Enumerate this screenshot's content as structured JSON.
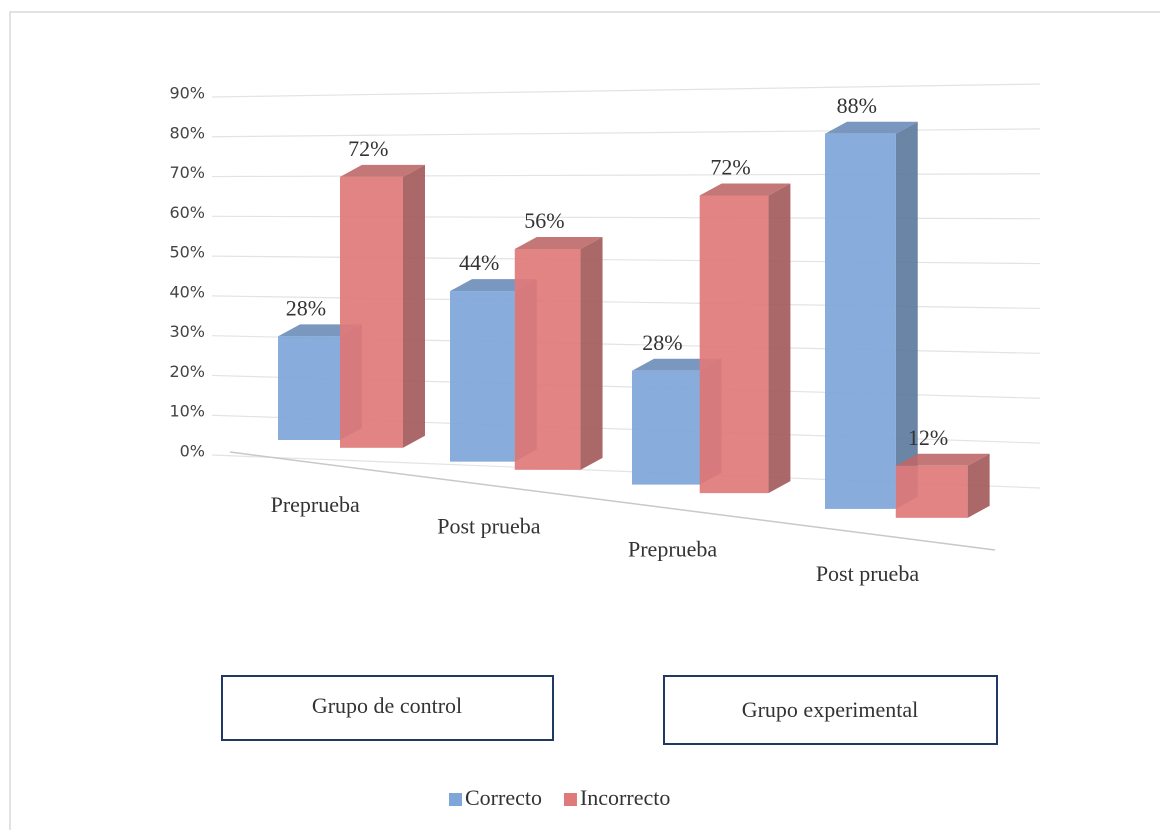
{
  "chart_data": {
    "type": "bar3d",
    "categories": [
      "Preprueba",
      "Post prueba",
      "Preprueba",
      "Post prueba"
    ],
    "series": [
      {
        "name": "Correcto",
        "color": "#7ea6d9",
        "values": [
          28,
          44,
          28,
          88
        ],
        "value_labels": [
          "28%",
          "44%",
          "28%",
          "88%"
        ]
      },
      {
        "name": "Incorrecto",
        "color": "#e07a7a",
        "values": [
          72,
          56,
          72,
          12
        ],
        "value_labels": [
          "72%",
          "56%",
          "72%",
          "12%"
        ]
      }
    ],
    "ylim": [
      0,
      90
    ],
    "yticks": [
      {
        "value": 0,
        "label": "0%"
      },
      {
        "value": 10,
        "label": "10%"
      },
      {
        "value": 20,
        "label": "20%"
      },
      {
        "value": 30,
        "label": "30%"
      },
      {
        "value": 40,
        "label": "40%"
      },
      {
        "value": 50,
        "label": "50%"
      },
      {
        "value": 60,
        "label": "60%"
      },
      {
        "value": 70,
        "label": "70%"
      },
      {
        "value": 80,
        "label": "80%"
      },
      {
        "value": 90,
        "label": "90%"
      }
    ],
    "grid": true,
    "legend": "bottom",
    "annotations": [
      "Grupo de control",
      "Grupo experimental"
    ]
  }
}
